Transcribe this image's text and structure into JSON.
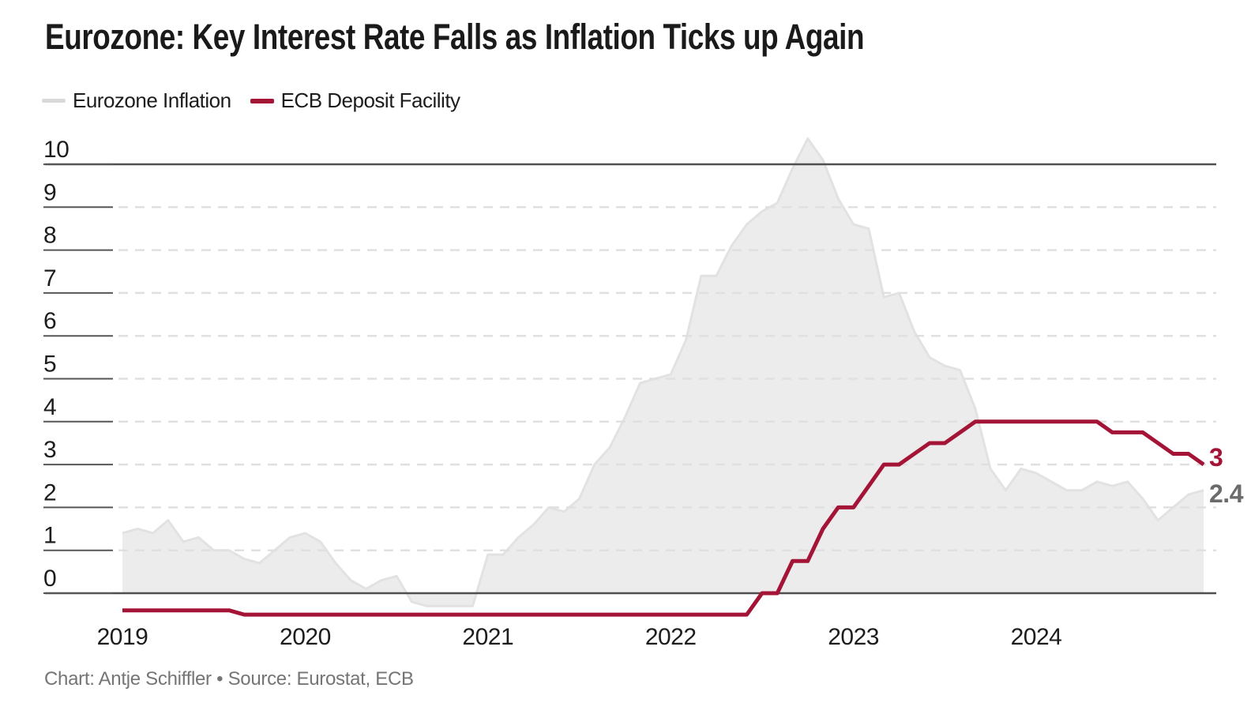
{
  "header": {
    "title": "Eurozone: Key Interest Rate Falls as Inflation Ticks up Again"
  },
  "legend": [
    {
      "label": "Eurozone Inflation",
      "swatch_color": "#d9d9d9"
    },
    {
      "label": "ECB Deposit Facility",
      "swatch_color": "#a41437"
    }
  ],
  "footer": {
    "credit": "Chart: Antje Schiffler • Source: Eurostat, ECB"
  },
  "colors": {
    "accent_red": "#a41437",
    "area_fill": "#ececec",
    "area_edge": "#e2e2e2",
    "grid_dashed": "#e0e0e0",
    "axis_solid": "#4f4f4f",
    "tick_segment": "#565656",
    "text_dark": "#1d1d1d",
    "text_gray": "#6b6b6b",
    "footer_gray": "#757575"
  },
  "chart_data": {
    "type": "area",
    "title": "Eurozone: Key Interest Rate Falls as Inflation Ticks up Again",
    "x_start_month": "2019-01",
    "x_end_month": "2024-12",
    "x_axis": {
      "tick_labels": [
        "2019",
        "2020",
        "2021",
        "2022",
        "2023",
        "2024"
      ]
    },
    "y_axis": {
      "ticks": [
        0,
        1,
        2,
        3,
        4,
        5,
        6,
        7,
        8,
        9,
        10
      ],
      "solid_lines_at": [
        0,
        10
      ]
    },
    "ylim": [
      -0.6,
      10.6
    ],
    "grid": "horizontal dashed gridlines 1-9, solid at 0 and 10",
    "legend_position": "top-left",
    "series": [
      {
        "name": "Eurozone Inflation",
        "type": "area",
        "fill": "#ececec",
        "stroke": "#e2e2e2",
        "end_label": "2.4",
        "values": [
          1.4,
          1.5,
          1.4,
          1.7,
          1.2,
          1.3,
          1.0,
          1.0,
          0.8,
          0.7,
          1.0,
          1.3,
          1.4,
          1.2,
          0.7,
          0.3,
          0.1,
          0.3,
          0.4,
          -0.2,
          -0.3,
          -0.3,
          -0.3,
          -0.3,
          0.9,
          0.9,
          1.3,
          1.6,
          2.0,
          1.9,
          2.2,
          3.0,
          3.4,
          4.1,
          4.9,
          5.0,
          5.1,
          5.9,
          7.4,
          7.4,
          8.1,
          8.6,
          8.9,
          9.1,
          9.9,
          10.6,
          10.1,
          9.2,
          8.6,
          8.5,
          6.9,
          7.0,
          6.1,
          5.5,
          5.3,
          5.2,
          4.3,
          2.9,
          2.4,
          2.9,
          2.8,
          2.6,
          2.4,
          2.4,
          2.6,
          2.5,
          2.6,
          2.2,
          1.7,
          2.0,
          2.3,
          2.4
        ]
      },
      {
        "name": "ECB Deposit Facility",
        "type": "line",
        "color": "#a41437",
        "end_label": "3",
        "values": [
          -0.4,
          -0.4,
          -0.4,
          -0.4,
          -0.4,
          -0.4,
          -0.4,
          -0.4,
          -0.5,
          -0.5,
          -0.5,
          -0.5,
          -0.5,
          -0.5,
          -0.5,
          -0.5,
          -0.5,
          -0.5,
          -0.5,
          -0.5,
          -0.5,
          -0.5,
          -0.5,
          -0.5,
          -0.5,
          -0.5,
          -0.5,
          -0.5,
          -0.5,
          -0.5,
          -0.5,
          -0.5,
          -0.5,
          -0.5,
          -0.5,
          -0.5,
          -0.5,
          -0.5,
          -0.5,
          -0.5,
          -0.5,
          -0.5,
          0.0,
          0.0,
          0.75,
          0.75,
          1.5,
          2.0,
          2.0,
          2.5,
          3.0,
          3.0,
          3.25,
          3.5,
          3.5,
          3.75,
          4.0,
          4.0,
          4.0,
          4.0,
          4.0,
          4.0,
          4.0,
          4.0,
          4.0,
          3.75,
          3.75,
          3.75,
          3.5,
          3.25,
          3.25,
          3.0
        ]
      }
    ]
  }
}
